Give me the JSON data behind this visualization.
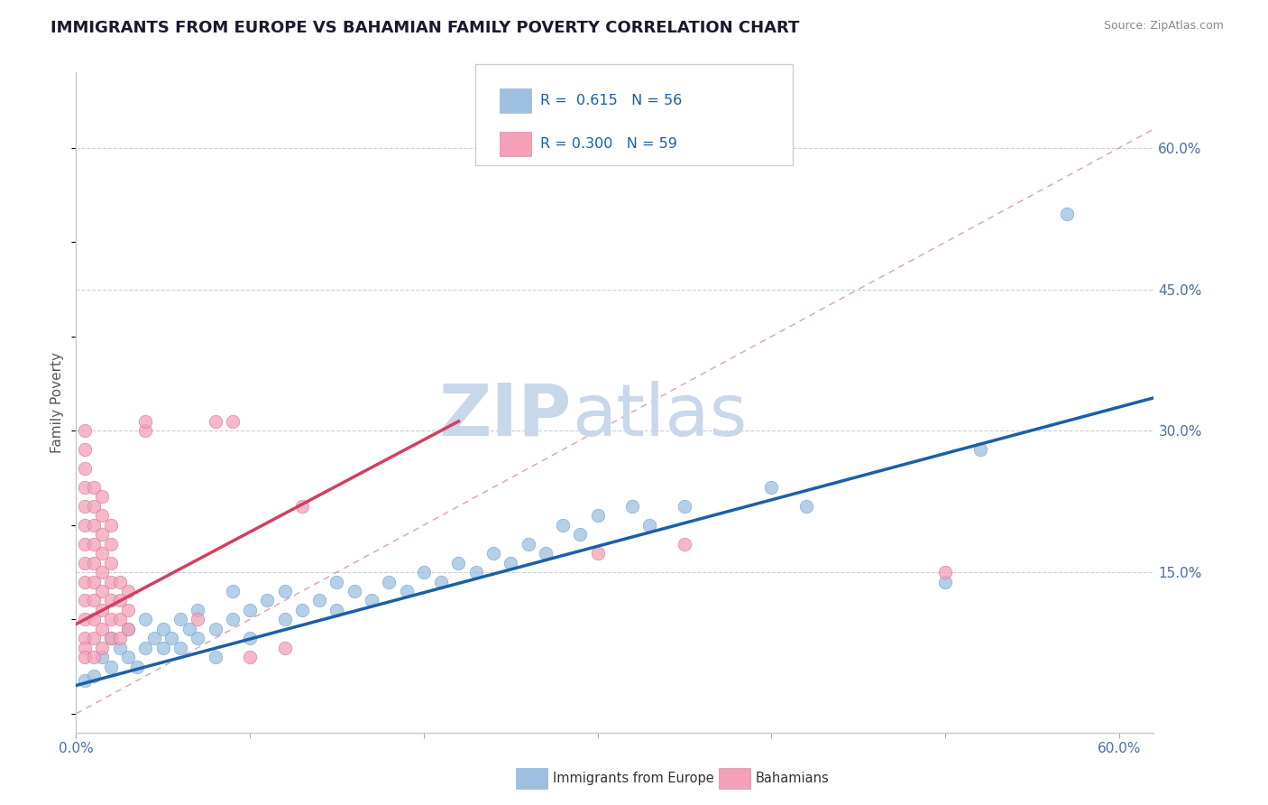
{
  "title": "IMMIGRANTS FROM EUROPE VS BAHAMIAN FAMILY POVERTY CORRELATION CHART",
  "source_text": "Source: ZipAtlas.com",
  "ylabel": "Family Poverty",
  "xlim": [
    0.0,
    0.62
  ],
  "ylim": [
    -0.02,
    0.68
  ],
  "ytick_labels_right": [
    "15.0%",
    "30.0%",
    "45.0%",
    "60.0%"
  ],
  "ytick_vals_right": [
    0.15,
    0.3,
    0.45,
    0.6
  ],
  "blue_color": "#9dbfe0",
  "pink_color": "#f4a0b8",
  "blue_line_color": "#1a5fa8",
  "pink_line_color": "#d04060",
  "diag_line_color": "#e0a0b0",
  "watermark_zip_color": "#c8d8ea",
  "watermark_atlas_color": "#c8d8ea",
  "title_fontsize": 13,
  "blue_scatter": [
    [
      0.005,
      0.035
    ],
    [
      0.01,
      0.04
    ],
    [
      0.015,
      0.06
    ],
    [
      0.02,
      0.05
    ],
    [
      0.02,
      0.08
    ],
    [
      0.025,
      0.07
    ],
    [
      0.03,
      0.06
    ],
    [
      0.03,
      0.09
    ],
    [
      0.035,
      0.05
    ],
    [
      0.04,
      0.07
    ],
    [
      0.04,
      0.1
    ],
    [
      0.045,
      0.08
    ],
    [
      0.05,
      0.07
    ],
    [
      0.05,
      0.09
    ],
    [
      0.055,
      0.08
    ],
    [
      0.06,
      0.1
    ],
    [
      0.06,
      0.07
    ],
    [
      0.065,
      0.09
    ],
    [
      0.07,
      0.11
    ],
    [
      0.07,
      0.08
    ],
    [
      0.08,
      0.09
    ],
    [
      0.08,
      0.06
    ],
    [
      0.09,
      0.1
    ],
    [
      0.09,
      0.13
    ],
    [
      0.1,
      0.11
    ],
    [
      0.1,
      0.08
    ],
    [
      0.11,
      0.12
    ],
    [
      0.12,
      0.1
    ],
    [
      0.12,
      0.13
    ],
    [
      0.13,
      0.11
    ],
    [
      0.14,
      0.12
    ],
    [
      0.15,
      0.14
    ],
    [
      0.15,
      0.11
    ],
    [
      0.16,
      0.13
    ],
    [
      0.17,
      0.12
    ],
    [
      0.18,
      0.14
    ],
    [
      0.19,
      0.13
    ],
    [
      0.2,
      0.15
    ],
    [
      0.21,
      0.14
    ],
    [
      0.22,
      0.16
    ],
    [
      0.23,
      0.15
    ],
    [
      0.24,
      0.17
    ],
    [
      0.25,
      0.16
    ],
    [
      0.26,
      0.18
    ],
    [
      0.27,
      0.17
    ],
    [
      0.28,
      0.2
    ],
    [
      0.29,
      0.19
    ],
    [
      0.3,
      0.21
    ],
    [
      0.32,
      0.22
    ],
    [
      0.33,
      0.2
    ],
    [
      0.35,
      0.22
    ],
    [
      0.4,
      0.24
    ],
    [
      0.42,
      0.22
    ],
    [
      0.5,
      0.14
    ],
    [
      0.57,
      0.53
    ],
    [
      0.52,
      0.28
    ]
  ],
  "pink_scatter": [
    [
      0.005,
      0.08
    ],
    [
      0.005,
      0.1
    ],
    [
      0.005,
      0.12
    ],
    [
      0.005,
      0.14
    ],
    [
      0.005,
      0.16
    ],
    [
      0.005,
      0.18
    ],
    [
      0.005,
      0.2
    ],
    [
      0.005,
      0.22
    ],
    [
      0.005,
      0.24
    ],
    [
      0.005,
      0.26
    ],
    [
      0.005,
      0.28
    ],
    [
      0.005,
      0.3
    ],
    [
      0.005,
      0.07
    ],
    [
      0.005,
      0.06
    ],
    [
      0.01,
      0.06
    ],
    [
      0.01,
      0.08
    ],
    [
      0.01,
      0.1
    ],
    [
      0.01,
      0.12
    ],
    [
      0.01,
      0.14
    ],
    [
      0.01,
      0.16
    ],
    [
      0.01,
      0.18
    ],
    [
      0.01,
      0.2
    ],
    [
      0.01,
      0.22
    ],
    [
      0.01,
      0.24
    ],
    [
      0.015,
      0.07
    ],
    [
      0.015,
      0.09
    ],
    [
      0.015,
      0.11
    ],
    [
      0.015,
      0.13
    ],
    [
      0.015,
      0.15
    ],
    [
      0.015,
      0.17
    ],
    [
      0.015,
      0.19
    ],
    [
      0.015,
      0.21
    ],
    [
      0.015,
      0.23
    ],
    [
      0.02,
      0.08
    ],
    [
      0.02,
      0.1
    ],
    [
      0.02,
      0.12
    ],
    [
      0.02,
      0.14
    ],
    [
      0.02,
      0.16
    ],
    [
      0.02,
      0.18
    ],
    [
      0.02,
      0.2
    ],
    [
      0.025,
      0.08
    ],
    [
      0.025,
      0.1
    ],
    [
      0.025,
      0.12
    ],
    [
      0.025,
      0.14
    ],
    [
      0.03,
      0.09
    ],
    [
      0.03,
      0.11
    ],
    [
      0.03,
      0.13
    ],
    [
      0.04,
      0.3
    ],
    [
      0.04,
      0.31
    ],
    [
      0.08,
      0.31
    ],
    [
      0.09,
      0.31
    ],
    [
      0.13,
      0.22
    ],
    [
      0.07,
      0.1
    ],
    [
      0.35,
      0.18
    ],
    [
      0.3,
      0.17
    ],
    [
      0.5,
      0.15
    ],
    [
      0.1,
      0.06
    ],
    [
      0.12,
      0.07
    ]
  ],
  "blue_line_x": [
    0.0,
    0.62
  ],
  "blue_line_y": [
    0.03,
    0.335
  ],
  "pink_line_x": [
    0.0,
    0.22
  ],
  "pink_line_y": [
    0.095,
    0.31
  ]
}
